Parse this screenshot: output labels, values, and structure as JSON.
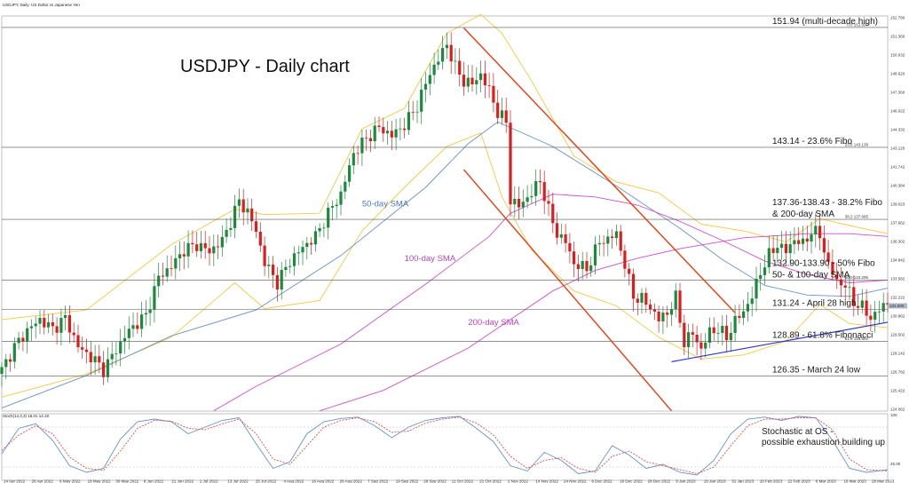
{
  "header": {
    "symbol_line": "USDJPY, Daily: US Dollar vs Japanese Yen",
    "stoch_line": "Stoch(14,3,3) 16.01 14.19"
  },
  "chart_data": {
    "type": "candlestick",
    "title": "USDJPY - Daily chart",
    "ylim": [
      123.78,
      152.78
    ],
    "y_ticks": [
      "152.780",
      "151.360",
      "150.032",
      "148.620",
      "147.360",
      "146.022",
      "144.332",
      "143.120",
      "141.742",
      "140.384",
      "139.023",
      "137.662",
      "136.302",
      "134.942",
      "133.582",
      "132.222",
      "130.862",
      "129.502",
      "128.142",
      "126.782",
      "125.422",
      "124.062"
    ],
    "x_dates": [
      "14 Apr 2022",
      "26 Apr 2022",
      "6 May 2022",
      "18 May 2022",
      "30 May 2022",
      "9 Jun 2022",
      "21 Jun 2022",
      "1 Jul 2022",
      "13 Jul 2022",
      "25 Jul 2022",
      "4 Aug 2022",
      "16 Aug 2022",
      "26 Aug 2022",
      "7 Sep 2022",
      "19 Sep 2022",
      "29 Sep 2022",
      "11 Oct 2022",
      "21 Oct 2022",
      "2 Nov 2022",
      "14 Nov 2022",
      "24 Nov 2022",
      "6 Dec 2022",
      "16 Dec 2022",
      "28 Dec 2022",
      "9 Jan 2023",
      "19 Jan 2023",
      "31 Jan 2023",
      "10 Feb 2023",
      "22 Feb 2023",
      "6 Mar 2023",
      "16 Mar 2023",
      "28 Mar 2023"
    ],
    "close_path": [
      [
        0,
        126.8
      ],
      [
        3,
        128.5
      ],
      [
        6,
        129.7
      ],
      [
        9,
        130.5
      ],
      [
        12,
        129.8
      ],
      [
        15,
        130.6
      ],
      [
        18,
        128.5
      ],
      [
        22,
        127.5
      ],
      [
        24,
        126.8
      ],
      [
        27,
        128.3
      ],
      [
        30,
        129.7
      ],
      [
        34,
        130.8
      ],
      [
        37,
        133.6
      ],
      [
        40,
        134.4
      ],
      [
        43,
        135.6
      ],
      [
        46,
        136.0
      ],
      [
        49,
        135.5
      ],
      [
        52,
        136.3
      ],
      [
        54,
        137.7
      ],
      [
        56,
        139.2
      ],
      [
        58,
        138.4
      ],
      [
        60,
        137.0
      ],
      [
        62,
        134.7
      ],
      [
        65,
        133.2
      ],
      [
        68,
        134.8
      ],
      [
        71,
        135.8
      ],
      [
        74,
        136.6
      ],
      [
        77,
        138.3
      ],
      [
        80,
        139.7
      ],
      [
        83,
        142.7
      ],
      [
        86,
        143.8
      ],
      [
        89,
        144.6
      ],
      [
        92,
        144.0
      ],
      [
        95,
        144.8
      ],
      [
        98,
        146.2
      ],
      [
        101,
        148.6
      ],
      [
        103,
        149.6
      ],
      [
        105,
        150.7
      ],
      [
        107,
        149.0
      ],
      [
        109,
        148.0
      ],
      [
        111,
        147.8
      ],
      [
        113,
        148.5
      ],
      [
        115,
        147.3
      ],
      [
        117,
        145.7
      ],
      [
        119,
        145.0
      ],
      [
        120,
        139.3
      ],
      [
        122,
        138.8
      ],
      [
        125,
        139.8
      ],
      [
        127,
        140.7
      ],
      [
        129,
        138.5
      ],
      [
        131,
        136.8
      ],
      [
        133,
        136.2
      ],
      [
        135,
        134.6
      ],
      [
        138,
        134.2
      ],
      [
        141,
        136.2
      ],
      [
        143,
        136.4
      ],
      [
        145,
        136.8
      ],
      [
        147,
        134.5
      ],
      [
        149,
        132.2
      ],
      [
        151,
        132.0
      ],
      [
        153,
        131.4
      ],
      [
        155,
        130.5
      ],
      [
        157,
        131.0
      ],
      [
        159,
        132.1
      ],
      [
        161,
        128.8
      ],
      [
        163,
        129.5
      ],
      [
        165,
        128.3
      ],
      [
        167,
        129.6
      ],
      [
        169,
        129.8
      ],
      [
        171,
        129.2
      ],
      [
        173,
        130.4
      ],
      [
        175,
        131.1
      ],
      [
        177,
        132.2
      ],
      [
        179,
        134.0
      ],
      [
        181,
        135.2
      ],
      [
        183,
        136.0
      ],
      [
        185,
        135.5
      ],
      [
        187,
        136.4
      ],
      [
        189,
        136.0
      ],
      [
        191,
        137.0
      ],
      [
        193,
        136.7
      ],
      [
        195,
        134.5
      ],
      [
        197,
        133.3
      ],
      [
        199,
        133.0
      ],
      [
        201,
        131.8
      ],
      [
        203,
        131.4
      ],
      [
        205,
        130.6
      ],
      [
        207,
        131.2
      ],
      [
        209,
        131.8
      ]
    ],
    "sma": [
      {
        "name": "50-day SMA",
        "color": "#6a93c4",
        "points": [
          [
            0,
            124.0
          ],
          [
            20,
            126.4
          ],
          [
            40,
            129.3
          ],
          [
            60,
            131.2
          ],
          [
            80,
            135.2
          ],
          [
            100,
            140.2
          ],
          [
            110,
            143.4
          ],
          [
            117,
            145.0
          ],
          [
            130,
            143.2
          ],
          [
            145,
            140.3
          ],
          [
            160,
            137.2
          ],
          [
            170,
            134.9
          ],
          [
            180,
            133.0
          ],
          [
            190,
            132.3
          ],
          [
            200,
            132.2
          ],
          [
            209,
            132.8
          ]
        ]
      },
      {
        "name": "100-day SMA",
        "color": "#d04fd0",
        "points": [
          [
            50,
            123.8
          ],
          [
            60,
            125.6
          ],
          [
            80,
            128.7
          ],
          [
            100,
            133.1
          ],
          [
            115,
            136.6
          ],
          [
            120,
            138.3
          ],
          [
            130,
            139.7
          ],
          [
            140,
            139.5
          ],
          [
            150,
            138.9
          ],
          [
            160,
            137.7
          ],
          [
            170,
            136.3
          ],
          [
            180,
            134.8
          ],
          [
            190,
            133.8
          ],
          [
            200,
            133.2
          ],
          [
            209,
            133.4
          ]
        ]
      },
      {
        "name": "200-day SMA",
        "color": "#d04fd0",
        "points": [
          [
            75,
            123.8
          ],
          [
            90,
            125.3
          ],
          [
            110,
            128.4
          ],
          [
            120,
            130.5
          ],
          [
            130,
            132.6
          ],
          [
            140,
            134.1
          ],
          [
            150,
            135.0
          ],
          [
            160,
            135.7
          ],
          [
            175,
            136.5
          ],
          [
            190,
            136.8
          ],
          [
            200,
            136.8
          ],
          [
            209,
            136.6
          ]
        ]
      }
    ],
    "bollinger": {
      "color": "#f5c842",
      "upper": [
        [
          0,
          130.5
        ],
        [
          20,
          131.2
        ],
        [
          40,
          136.0
        ],
        [
          55,
          138.6
        ],
        [
          62,
          138.2
        ],
        [
          75,
          138.3
        ],
        [
          85,
          144.5
        ],
        [
          95,
          146.0
        ],
        [
          105,
          151.5
        ],
        [
          113,
          152.9
        ],
        [
          118,
          151.5
        ],
        [
          125,
          148.0
        ],
        [
          135,
          142.5
        ],
        [
          145,
          140.6
        ],
        [
          155,
          139.8
        ],
        [
          165,
          137.5
        ],
        [
          175,
          137.0
        ],
        [
          185,
          136.2
        ],
        [
          193,
          137.9
        ],
        [
          200,
          137.4
        ],
        [
          209,
          136.8
        ]
      ],
      "lower": [
        [
          0,
          124.8
        ],
        [
          20,
          126.5
        ],
        [
          40,
          129.2
        ],
        [
          55,
          133.2
        ],
        [
          62,
          131.3
        ],
        [
          75,
          131.9
        ],
        [
          85,
          137.0
        ],
        [
          95,
          140.2
        ],
        [
          105,
          143.2
        ],
        [
          113,
          144.2
        ],
        [
          118,
          139.5
        ],
        [
          125,
          135.6
        ],
        [
          135,
          132.6
        ],
        [
          145,
          131.5
        ],
        [
          155,
          129.2
        ],
        [
          165,
          127.6
        ],
        [
          175,
          127.9
        ],
        [
          185,
          128.9
        ],
        [
          193,
          131.6
        ],
        [
          200,
          130.2
        ],
        [
          209,
          129.9
        ]
      ]
    },
    "levels": [
      {
        "label": "151.94 (multi-decade high)",
        "y": 151.94,
        "fib_label": "0.0 151.937"
      },
      {
        "label": "143.14 - 23.6% Fibo",
        "y": 143.14,
        "fib_label": "23.6 143.139"
      },
      {
        "label_lines": [
          "137.36-138.43 - 38.2% Fibo",
          "& 200-day SMA"
        ],
        "y": 137.85,
        "fib_label": "38.2 137.695"
      },
      {
        "label_lines": [
          "132.90-133.90 - 50% Fibo",
          "50- & 100-day SMA"
        ],
        "y": 133.4,
        "fib_label": "50.0 133.295"
      },
      {
        "label": "131.24 - April 28 high",
        "y": 131.24,
        "fib_label": ""
      },
      {
        "label": "128.89 - 61.8% Fibonacci",
        "y": 128.89,
        "fib_label": "61.8 128.892"
      },
      {
        "label": "126.35 - March 24 low",
        "y": 126.35,
        "fib_label": ""
      }
    ],
    "channel": {
      "color": "#ee3b0e",
      "upper": [
        [
          109,
          151.9
        ],
        [
          173,
          131.0
        ]
      ],
      "lower": [
        [
          109,
          141.5
        ],
        [
          158,
          123.8
        ]
      ]
    },
    "support_line": {
      "color": "#2b33c8",
      "points": [
        [
          158,
          127.4
        ],
        [
          209,
          130.3
        ]
      ]
    },
    "price_marker": "131.500",
    "sma_labels": [
      {
        "text": "50-day SMA",
        "x": 85,
        "y": 138.8,
        "color": "#4a7ab8"
      },
      {
        "text": "100-day SMA",
        "x": 95,
        "y": 134.8,
        "color": "#b34ab3"
      },
      {
        "text": "200-day SMA",
        "x": 110,
        "y": 130.1,
        "color": "#c040c0"
      }
    ],
    "stochastic": {
      "ylim": [
        0,
        100
      ],
      "ticks": [
        "100",
        "25.00"
      ],
      "k_color": "#6a93c4",
      "d_color": "#e05050",
      "k": [
        [
          0,
          40
        ],
        [
          4,
          78
        ],
        [
          8,
          85
        ],
        [
          12,
          60
        ],
        [
          16,
          22
        ],
        [
          20,
          12
        ],
        [
          24,
          18
        ],
        [
          28,
          62
        ],
        [
          32,
          88
        ],
        [
          36,
          92
        ],
        [
          40,
          88
        ],
        [
          44,
          70
        ],
        [
          48,
          80
        ],
        [
          52,
          90
        ],
        [
          56,
          94
        ],
        [
          60,
          55
        ],
        [
          64,
          18
        ],
        [
          68,
          28
        ],
        [
          72,
          70
        ],
        [
          76,
          88
        ],
        [
          80,
          93
        ],
        [
          84,
          95
        ],
        [
          88,
          82
        ],
        [
          92,
          64
        ],
        [
          96,
          80
        ],
        [
          100,
          90
        ],
        [
          104,
          94
        ],
        [
          108,
          96
        ],
        [
          112,
          78
        ],
        [
          116,
          58
        ],
        [
          120,
          22
        ],
        [
          124,
          14
        ],
        [
          128,
          42
        ],
        [
          132,
          30
        ],
        [
          136,
          10
        ],
        [
          140,
          14
        ],
        [
          144,
          52
        ],
        [
          148,
          38
        ],
        [
          152,
          18
        ],
        [
          156,
          24
        ],
        [
          160,
          12
        ],
        [
          164,
          8
        ],
        [
          168,
          30
        ],
        [
          172,
          70
        ],
        [
          176,
          92
        ],
        [
          180,
          95
        ],
        [
          184,
          90
        ],
        [
          188,
          96
        ],
        [
          192,
          94
        ],
        [
          196,
          60
        ],
        [
          200,
          18
        ],
        [
          204,
          12
        ],
        [
          209,
          16
        ]
      ],
      "d": [
        [
          0,
          45
        ],
        [
          4,
          68
        ],
        [
          8,
          82
        ],
        [
          12,
          70
        ],
        [
          16,
          35
        ],
        [
          20,
          18
        ],
        [
          24,
          15
        ],
        [
          28,
          44
        ],
        [
          32,
          78
        ],
        [
          36,
          90
        ],
        [
          40,
          89
        ],
        [
          44,
          78
        ],
        [
          48,
          76
        ],
        [
          52,
          85
        ],
        [
          56,
          92
        ],
        [
          60,
          70
        ],
        [
          64,
          32
        ],
        [
          68,
          24
        ],
        [
          72,
          52
        ],
        [
          76,
          80
        ],
        [
          80,
          90
        ],
        [
          84,
          94
        ],
        [
          88,
          88
        ],
        [
          92,
          72
        ],
        [
          96,
          74
        ],
        [
          100,
          86
        ],
        [
          104,
          92
        ],
        [
          108,
          95
        ],
        [
          112,
          86
        ],
        [
          116,
          68
        ],
        [
          120,
          36
        ],
        [
          124,
          18
        ],
        [
          128,
          30
        ],
        [
          132,
          34
        ],
        [
          136,
          18
        ],
        [
          140,
          12
        ],
        [
          144,
          36
        ],
        [
          148,
          44
        ],
        [
          152,
          28
        ],
        [
          156,
          22
        ],
        [
          160,
          16
        ],
        [
          164,
          10
        ],
        [
          168,
          20
        ],
        [
          172,
          52
        ],
        [
          176,
          82
        ],
        [
          180,
          92
        ],
        [
          184,
          92
        ],
        [
          188,
          94
        ],
        [
          192,
          94
        ],
        [
          196,
          76
        ],
        [
          200,
          32
        ],
        [
          204,
          16
        ],
        [
          209,
          14
        ]
      ],
      "note_lines": [
        "Stochastic at OS -",
        "possible exhaustion building up"
      ]
    }
  }
}
